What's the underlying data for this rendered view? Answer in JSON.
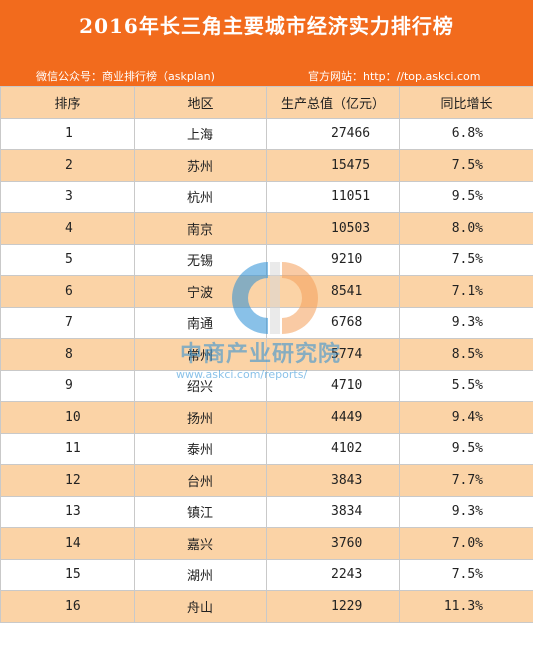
{
  "header": {
    "title": "2016年长三角主要城市经济实力排行榜",
    "wechat": "微信公众号：商业排行榜（askplan)",
    "website": "官方网站：http：//top.askci.com"
  },
  "table": {
    "columns": [
      "排序",
      "地区",
      "生产总值（亿元）",
      "同比增长"
    ],
    "rows": [
      {
        "rank": "1",
        "region": "上海",
        "gdp": "27466",
        "growth": "6.8%"
      },
      {
        "rank": "2",
        "region": "苏州",
        "gdp": "15475",
        "growth": "7.5%"
      },
      {
        "rank": "3",
        "region": "杭州",
        "gdp": "11051",
        "growth": "9.5%"
      },
      {
        "rank": "4",
        "region": "南京",
        "gdp": "10503",
        "growth": "8.0%"
      },
      {
        "rank": "5",
        "region": "无锡",
        "gdp": "9210",
        "growth": "7.5%"
      },
      {
        "rank": "6",
        "region": "宁波",
        "gdp": "8541",
        "growth": "7.1%"
      },
      {
        "rank": "7",
        "region": "南通",
        "gdp": "6768",
        "growth": "9.3%"
      },
      {
        "rank": "8",
        "region": "常州",
        "gdp": "5774",
        "growth": "8.5%"
      },
      {
        "rank": "9",
        "region": "绍兴",
        "gdp": "4710",
        "growth": "5.5%"
      },
      {
        "rank": "10",
        "region": "扬州",
        "gdp": "4449",
        "growth": "9.4%"
      },
      {
        "rank": "11",
        "region": "泰州",
        "gdp": "4102",
        "growth": "9.5%"
      },
      {
        "rank": "12",
        "region": "台州",
        "gdp": "3843",
        "growth": "7.7%"
      },
      {
        "rank": "13",
        "region": "镇江",
        "gdp": "3834",
        "growth": "9.3%"
      },
      {
        "rank": "14",
        "region": "嘉兴",
        "gdp": "3760",
        "growth": "7.0%"
      },
      {
        "rank": "15",
        "region": "湖州",
        "gdp": "2243",
        "growth": "7.5%"
      },
      {
        "rank": "16",
        "region": "舟山",
        "gdp": "1229",
        "growth": "11.3%"
      }
    ]
  },
  "watermark": {
    "brand": "中商产业研究院",
    "url": "www.askci.com/reports/",
    "icon": "askci-logo-icon",
    "colors": {
      "orange": "#f5a05a",
      "blue": "#2a8fd6"
    }
  },
  "colors": {
    "banner": "#f26b1d",
    "stripe": "#fbd3a6"
  }
}
